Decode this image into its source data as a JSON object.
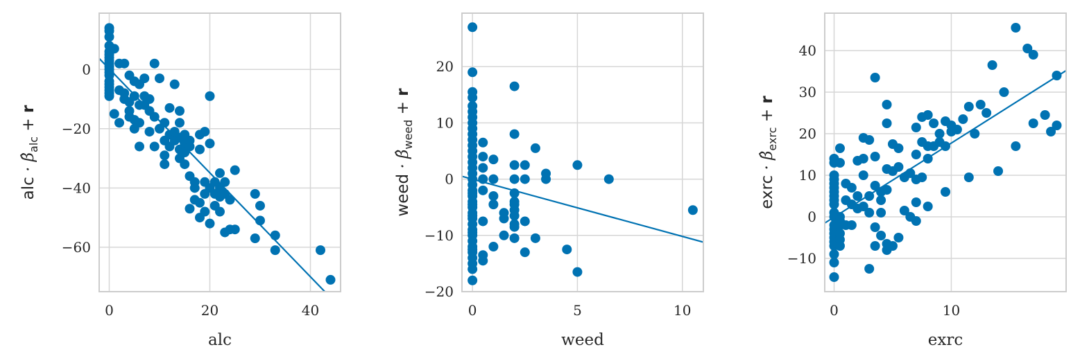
{
  "colors": {
    "series": "#0072b2",
    "grid": "#d6d6d6",
    "frame": "#cccccc",
    "text": "#262626"
  },
  "chart_data": [
    {
      "type": "scatter",
      "xlabel": "alc",
      "ylabel": {
        "prefix": "alc",
        "beta_sub": "alc",
        "plus": "+",
        "resid": "r"
      },
      "xlim": [
        -2,
        46
      ],
      "ylim": [
        -75,
        19
      ],
      "xticks": [
        0,
        20,
        40
      ],
      "yticks": [
        0,
        -20,
        -40,
        -60
      ],
      "xtick_labels": [
        "0",
        "20",
        "40"
      ],
      "ytick_labels": [
        "0",
        "−20",
        "−40",
        "−60"
      ],
      "grid": true,
      "fit_line": {
        "x": [
          -2,
          46
        ],
        "y": [
          3.7,
          -80.5
        ]
      },
      "x": [
        0,
        0,
        0,
        0,
        0,
        0,
        0,
        0,
        0,
        0,
        0,
        0,
        0,
        0,
        0,
        0,
        0,
        0,
        0,
        1,
        1,
        2,
        2,
        2,
        3,
        3,
        3,
        4,
        4,
        4,
        4,
        5,
        5,
        5,
        5,
        6,
        6,
        6,
        6,
        7,
        7,
        7,
        8,
        8,
        8,
        9,
        9,
        9,
        10,
        10,
        11,
        11,
        11,
        11,
        12,
        12,
        12,
        13,
        13,
        13,
        14,
        14,
        14,
        14,
        14,
        15,
        15,
        15,
        15,
        16,
        16,
        16,
        16,
        17,
        17,
        17,
        18,
        18,
        18,
        18,
        19,
        19,
        19,
        19,
        20,
        20,
        20,
        20,
        21,
        21,
        21,
        22,
        22,
        22,
        22,
        23,
        23,
        23,
        24,
        24,
        25,
        25,
        29,
        29,
        30,
        30,
        33,
        33,
        42,
        44
      ],
      "y": [
        14,
        13,
        11,
        8,
        6,
        4,
        2,
        0,
        -2,
        -4,
        -6,
        -8,
        -9,
        -1,
        1,
        3,
        -5,
        -7,
        5,
        7,
        -15,
        2,
        -7,
        -18,
        -8,
        -10,
        2,
        -2,
        -11,
        -16,
        -14,
        -4,
        -9,
        -20,
        -17,
        -12,
        -18,
        -26,
        -5,
        -3,
        -9,
        -12,
        -10,
        -14,
        -21,
        2,
        -16,
        -26,
        -3,
        -20,
        -18,
        -24,
        -29,
        -32,
        -13,
        -22,
        -26,
        -5,
        -21,
        -24,
        -14,
        -18,
        -27,
        -30,
        -23,
        -22,
        -25,
        -32,
        -28,
        -36,
        -47,
        -26,
        -24,
        -44,
        -38,
        -40,
        -22,
        -27,
        -45,
        -50,
        -21,
        -38,
        -42,
        -48,
        -9,
        -25,
        -40,
        -52,
        -42,
        -46,
        -38,
        -35,
        -40,
        -43,
        -48,
        -55,
        -38,
        -42,
        -54,
        -44,
        -34,
        -54,
        -42,
        -57,
        -46,
        -51,
        -56,
        -61,
        -61,
        -71
      ]
    },
    {
      "type": "scatter",
      "xlabel": "weed",
      "ylabel": {
        "prefix": "weed",
        "beta_sub": "weed",
        "plus": "+",
        "resid": "r"
      },
      "xlim": [
        -0.5,
        11
      ],
      "ylim": [
        -20,
        29.5
      ],
      "xticks": [
        0,
        5,
        10
      ],
      "yticks": [
        20,
        10,
        0,
        -10,
        -20
      ],
      "xtick_labels": [
        "0",
        "5",
        "10"
      ],
      "ytick_labels": [
        "20",
        "10",
        "0",
        "−10",
        "−20"
      ],
      "grid": true,
      "fit_line": {
        "x": [
          -0.5,
          11
        ],
        "y": [
          0.5,
          -11.2
        ]
      },
      "x": [
        0,
        0,
        0,
        0,
        0,
        0,
        0,
        0,
        0,
        0,
        0,
        0,
        0,
        0,
        0,
        0,
        0,
        0,
        0,
        0,
        0,
        0,
        0,
        0,
        0,
        0,
        0,
        0,
        0,
        0,
        0,
        0,
        0,
        0,
        0,
        0,
        0,
        0,
        0,
        0,
        0.5,
        0.5,
        0.5,
        0.5,
        0.5,
        0.5,
        0.5,
        0.5,
        1,
        1,
        1,
        1,
        1,
        1.5,
        1.5,
        1.5,
        2,
        2,
        2,
        2,
        2,
        2,
        2,
        2,
        2,
        2,
        2,
        2,
        2.5,
        2.5,
        2.5,
        2.5,
        3,
        3,
        3.5,
        3.5,
        4.5,
        5,
        5,
        6.5,
        10.5
      ],
      "y": [
        27,
        19,
        15.5,
        14.5,
        13,
        12,
        11,
        10,
        9,
        8,
        7,
        6,
        5,
        4,
        3,
        2,
        1,
        0,
        -1,
        -2,
        -3,
        -4,
        -5,
        -6,
        -7,
        -8,
        -9,
        -10,
        -11,
        -12,
        -13,
        -14,
        -15,
        -16,
        -18,
        -2.5,
        -4.5,
        -6.5,
        -9.5,
        -12.5,
        6.5,
        4,
        2,
        0,
        -2,
        -7.5,
        -13.5,
        -14.5,
        3.5,
        0,
        -3,
        -4.5,
        -12,
        -6,
        -7,
        -10,
        16.5,
        8,
        2.5,
        0,
        -2.5,
        -4,
        -4.5,
        -5.5,
        -6.5,
        -8,
        -8.5,
        -10.5,
        2.5,
        0,
        -7.5,
        -13,
        5.5,
        -10.5,
        1,
        0,
        -12.5,
        2.5,
        -16.5,
        0,
        -5.5
      ]
    },
    {
      "type": "scatter",
      "xlabel": "exrc",
      "ylabel": {
        "prefix": "exrc",
        "beta_sub": "exrc",
        "plus": "+",
        "resid": "r"
      },
      "xlim": [
        -0.8,
        19.8
      ],
      "ylim": [
        -18,
        49
      ],
      "xticks": [
        0,
        10
      ],
      "yticks": [
        40,
        30,
        20,
        10,
        0,
        -10
      ],
      "xtick_labels": [
        "0",
        "10"
      ],
      "ytick_labels": [
        "40",
        "30",
        "20",
        "10",
        "0",
        "−10"
      ],
      "grid": true,
      "fit_line": {
        "x": [
          -0.8,
          19.8
        ],
        "y": [
          -1.5,
          35.2
        ]
      },
      "x": [
        0,
        0,
        0,
        0,
        0,
        0,
        0,
        0,
        0,
        0,
        0,
        0,
        0,
        0,
        0,
        0,
        0,
        0,
        0,
        0,
        0,
        0.5,
        0.5,
        0.5,
        0.5,
        0.5,
        0.5,
        0.5,
        0.5,
        1,
        1,
        1,
        1.5,
        1.5,
        1.5,
        2,
        2,
        2,
        2.5,
        2.5,
        2.5,
        2.5,
        3,
        3,
        3,
        3,
        3.5,
        3.5,
        3.5,
        3.5,
        3.5,
        4,
        4,
        4,
        4,
        4.5,
        4.5,
        4.5,
        4.5,
        4.5,
        4.5,
        5,
        5,
        5,
        5.5,
        5.5,
        5.5,
        6,
        6,
        6.5,
        6.5,
        7,
        7,
        7,
        7,
        7,
        7.5,
        7.5,
        7.5,
        8,
        8,
        8,
        8,
        8.5,
        8.5,
        9,
        9,
        9.5,
        9.5,
        9.5,
        10,
        10,
        10.5,
        11,
        11.5,
        11.5,
        12,
        12.5,
        13,
        13.5,
        14,
        14.5,
        15.5,
        15.5,
        16.5,
        17,
        17,
        18,
        18.5,
        19,
        19
      ],
      "y": [
        14,
        13,
        10,
        9,
        8,
        7,
        6,
        5,
        4,
        3,
        1,
        0,
        -2,
        -3,
        -4,
        -5,
        -6,
        -7,
        -9,
        -11,
        -14.5,
        16.5,
        13,
        0,
        -2,
        -4,
        -5.5,
        -7,
        -1,
        8,
        4,
        -2,
        7,
        3,
        -2,
        13.5,
        2,
        5,
        19,
        14,
        10,
        2.5,
        18.5,
        5,
        1,
        -12.5,
        33.5,
        14.5,
        7.5,
        -2.5,
        -7,
        6,
        4,
        1,
        -4.5,
        27,
        22.5,
        11.5,
        6.5,
        -6.5,
        -8,
        17.5,
        11,
        -7,
        16.5,
        12,
        -5,
        9.5,
        1.5,
        10.5,
        0,
        21.5,
        15,
        9,
        3.5,
        -1,
        24,
        18,
        9.5,
        24.5,
        17,
        14,
        2.5,
        22.5,
        17,
        20,
        18,
        23,
        17,
        6,
        22,
        20.5,
        21,
        23.5,
        26.5,
        9.5,
        20,
        27,
        25,
        36.5,
        11,
        30,
        17,
        45.5,
        40.5,
        22.5,
        39,
        24.5,
        20.5,
        22,
        34
      ]
    }
  ]
}
